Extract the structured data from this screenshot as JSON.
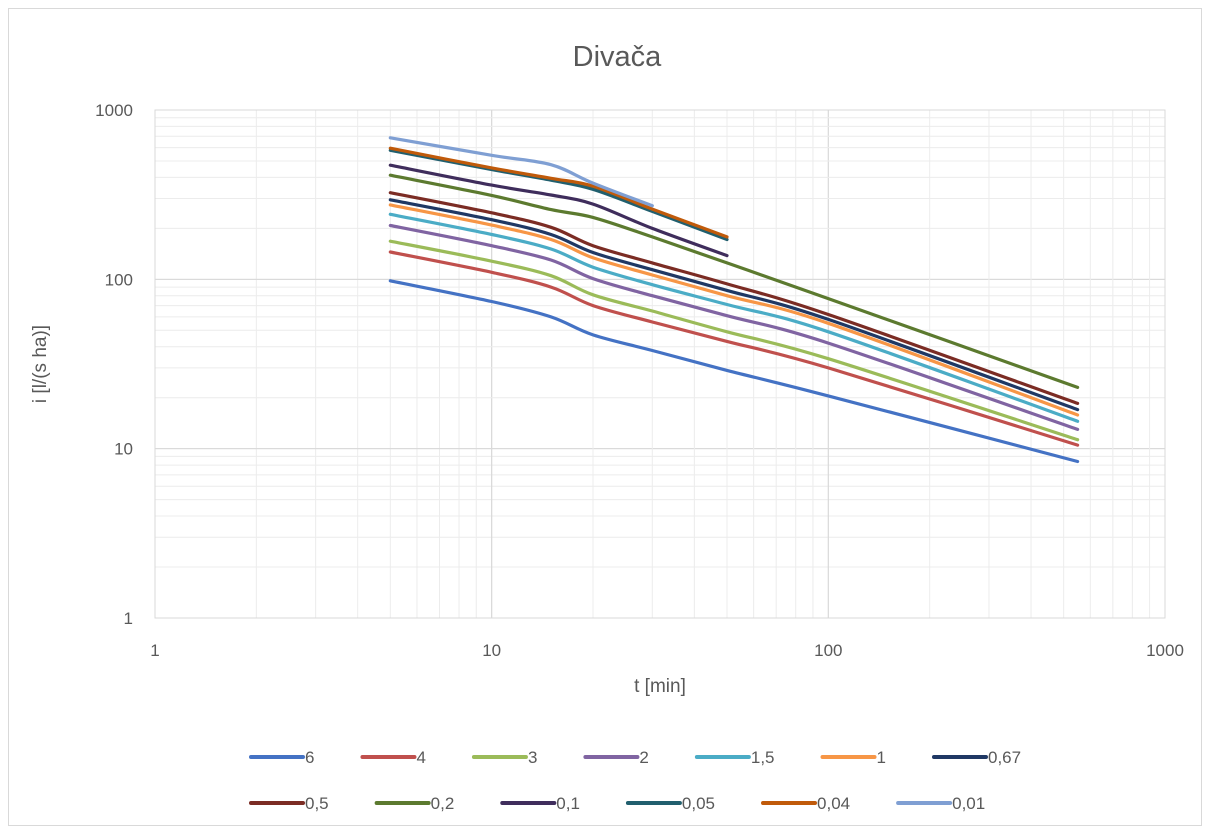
{
  "chart_data": {
    "type": "line",
    "title": "Divača",
    "xlabel": "t [min]",
    "ylabel": "i [l/(s ha)]",
    "x_scale": "log",
    "y_scale": "log",
    "xlim": [
      1,
      1000
    ],
    "ylim": [
      1,
      1000
    ],
    "x_ticks": [
      "1",
      "10",
      "100",
      "1000"
    ],
    "y_ticks": [
      "1",
      "10",
      "100",
      "1000"
    ],
    "grid": true,
    "legend_position": "bottom",
    "series": [
      {
        "name": "6",
        "color": "#4472c4",
        "points": [
          [
            5,
            98
          ],
          [
            10,
            74
          ],
          [
            15,
            60
          ],
          [
            20,
            47
          ],
          [
            30,
            38
          ],
          [
            50,
            29
          ],
          [
            100,
            20.5
          ],
          [
            550,
            8.4
          ]
        ]
      },
      {
        "name": "4",
        "color": "#c0504d",
        "points": [
          [
            5,
            145
          ],
          [
            10,
            110
          ],
          [
            15,
            90
          ],
          [
            20,
            70
          ],
          [
            30,
            56
          ],
          [
            50,
            43
          ],
          [
            100,
            30
          ],
          [
            550,
            10.5
          ]
        ]
      },
      {
        "name": "3",
        "color": "#9bbb59",
        "points": [
          [
            5,
            168
          ],
          [
            10,
            128
          ],
          [
            15,
            105
          ],
          [
            20,
            81
          ],
          [
            30,
            65
          ],
          [
            50,
            49
          ],
          [
            100,
            34
          ],
          [
            550,
            11.3
          ]
        ]
      },
      {
        "name": "2",
        "color": "#8064a2",
        "points": [
          [
            5,
            208
          ],
          [
            10,
            158
          ],
          [
            15,
            130
          ],
          [
            20,
            101
          ],
          [
            30,
            80
          ],
          [
            50,
            61
          ],
          [
            100,
            42
          ],
          [
            550,
            13
          ]
        ]
      },
      {
        "name": "1,5",
        "color": "#4bacc6",
        "points": [
          [
            5,
            242
          ],
          [
            10,
            184
          ],
          [
            15,
            151
          ],
          [
            20,
            118
          ],
          [
            30,
            93
          ],
          [
            50,
            71
          ],
          [
            100,
            49
          ],
          [
            550,
            14.5
          ]
        ]
      },
      {
        "name": "1",
        "color": "#f79646",
        "points": [
          [
            5,
            275
          ],
          [
            10,
            209
          ],
          [
            15,
            172
          ],
          [
            20,
            134
          ],
          [
            30,
            106
          ],
          [
            50,
            80
          ],
          [
            100,
            55
          ],
          [
            550,
            15.8
          ]
        ]
      },
      {
        "name": "0,67",
        "color": "#1f3864",
        "points": [
          [
            5,
            295
          ],
          [
            10,
            225
          ],
          [
            15,
            184
          ],
          [
            20,
            144
          ],
          [
            30,
            114
          ],
          [
            50,
            86
          ],
          [
            100,
            58
          ],
          [
            550,
            17
          ]
        ]
      },
      {
        "name": "0,5",
        "color": "#7b2c24",
        "points": [
          [
            5,
            325
          ],
          [
            10,
            247
          ],
          [
            15,
            203
          ],
          [
            20,
            158
          ],
          [
            30,
            125
          ],
          [
            50,
            94
          ],
          [
            100,
            62
          ],
          [
            550,
            18.5
          ]
        ]
      },
      {
        "name": "0,2",
        "color": "#5c7a2f",
        "points": [
          [
            5,
            412
          ],
          [
            10,
            313
          ],
          [
            15,
            258
          ],
          [
            20,
            232
          ],
          [
            30,
            178
          ],
          [
            50,
            125
          ],
          [
            100,
            77
          ],
          [
            550,
            23
          ]
        ]
      },
      {
        "name": "0,1",
        "color": "#3f2d5c",
        "points": [
          [
            5,
            472
          ],
          [
            10,
            360
          ],
          [
            15,
            315
          ],
          [
            20,
            278
          ],
          [
            30,
            200
          ],
          [
            50,
            138
          ]
        ]
      },
      {
        "name": "0,05",
        "color": "#215f6e",
        "points": [
          [
            5,
            578
          ],
          [
            10,
            445
          ],
          [
            15,
            385
          ],
          [
            20,
            340
          ],
          [
            30,
            252
          ],
          [
            50,
            172
          ]
        ]
      },
      {
        "name": "0,04",
        "color": "#c05a0a",
        "points": [
          [
            5,
            595
          ],
          [
            10,
            455
          ],
          [
            15,
            395
          ],
          [
            20,
            355
          ],
          [
            30,
            260
          ],
          [
            50,
            178
          ]
        ]
      },
      {
        "name": "0,01",
        "color": "#7f9fd3",
        "points": [
          [
            5,
            685
          ],
          [
            10,
            540
          ],
          [
            15,
            475
          ],
          [
            20,
            370
          ],
          [
            30,
            272
          ]
        ]
      }
    ]
  }
}
